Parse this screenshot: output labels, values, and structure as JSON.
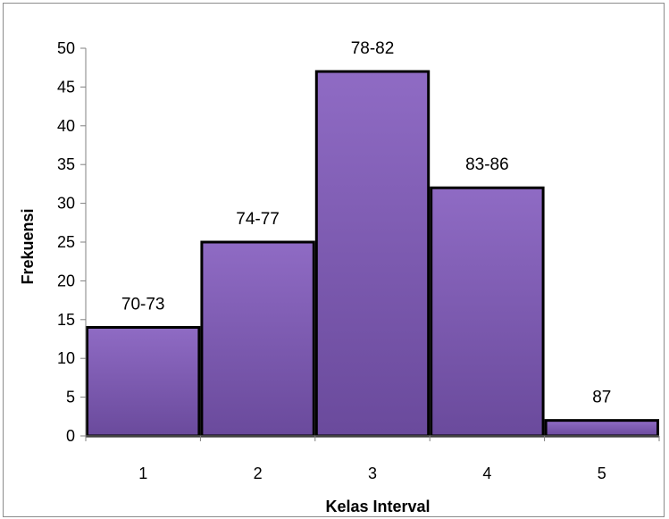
{
  "chart_data": {
    "type": "bar",
    "categories": [
      "1",
      "2",
      "3",
      "4",
      "5"
    ],
    "values": [
      14,
      25,
      47,
      32,
      2
    ],
    "data_labels": [
      "70-73",
      "74-77",
      "78-82",
      "83-86",
      "87"
    ],
    "title": "",
    "xlabel": "Kelas Interval",
    "ylabel": "Frekuensi",
    "ylim": [
      0,
      50
    ],
    "yticks": [
      0,
      5,
      10,
      15,
      20,
      25,
      30,
      35,
      40,
      45,
      50
    ],
    "bar_gap": 0,
    "grid": false,
    "legend": "none",
    "colors": {
      "bar_top": "#8f6bc4",
      "bar_bottom": "#6a4a9c",
      "bar_border": "#000000",
      "axis": "#808080"
    }
  }
}
